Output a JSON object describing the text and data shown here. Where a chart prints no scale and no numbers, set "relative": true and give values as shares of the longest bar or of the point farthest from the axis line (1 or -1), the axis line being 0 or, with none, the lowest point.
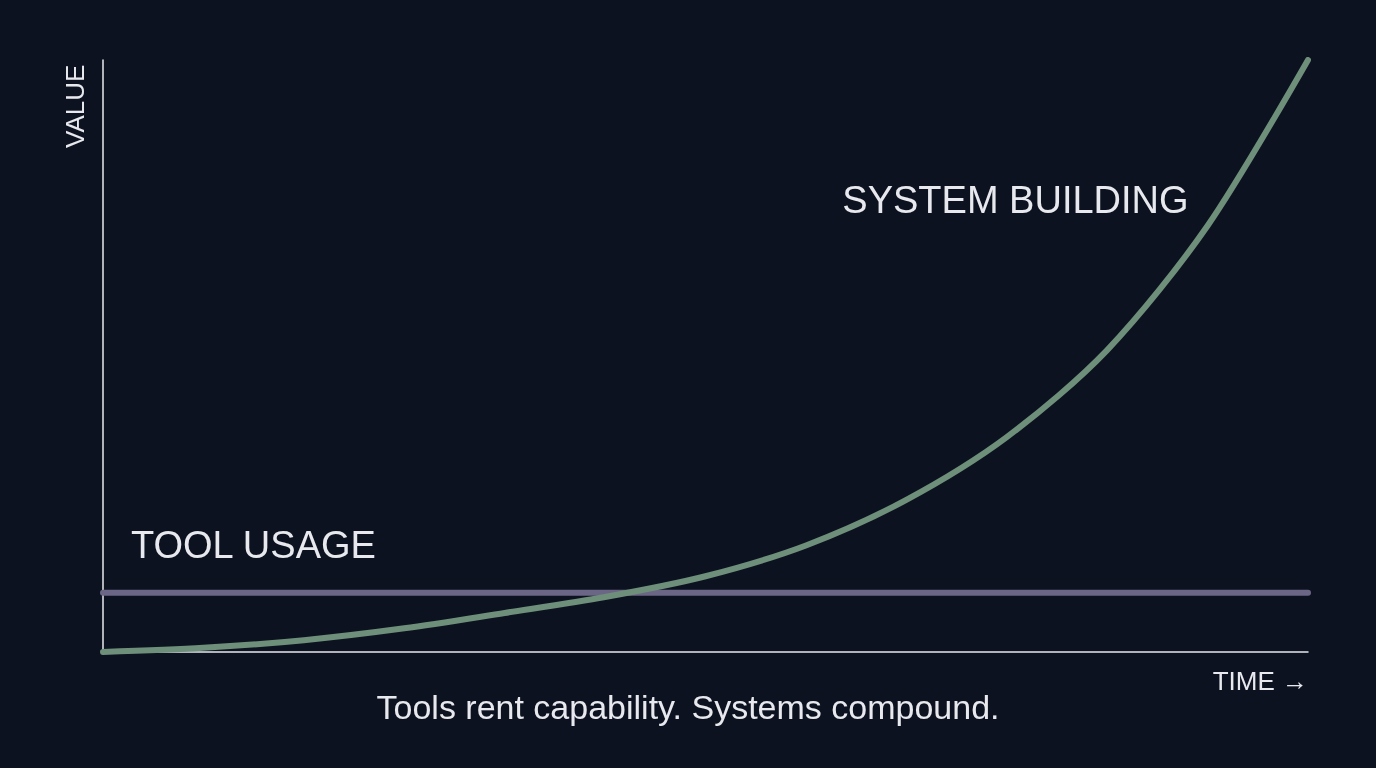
{
  "chart_data": {
    "type": "line",
    "relative": true,
    "xlabel": "TIME →",
    "ylabel": "VALUE",
    "categories": [
      null,
      null,
      null,
      null,
      null,
      null,
      null,
      null,
      null,
      null,
      null,
      null,
      null
    ],
    "series": [
      {
        "name": "TOOL USAGE",
        "color": "#6b6685",
        "values": [
          0.1,
          0.1,
          0.1,
          0.1,
          0.1,
          0.1,
          0.1,
          0.1,
          0.1,
          0.1,
          0.1,
          0.1,
          0.1
        ]
      },
      {
        "name": "SYSTEM BUILDING",
        "color": "#6e8f7a",
        "values": [
          0,
          0.007,
          0.02,
          0.04,
          0.066,
          0.093,
          0.128,
          0.18,
          0.257,
          0.363,
          0.51,
          0.72,
          1
        ]
      }
    ],
    "annotations": [
      "Tools rent capability. Systems compound."
    ],
    "grid": false,
    "legend": false,
    "marker": "none",
    "line_style": "solid"
  }
}
